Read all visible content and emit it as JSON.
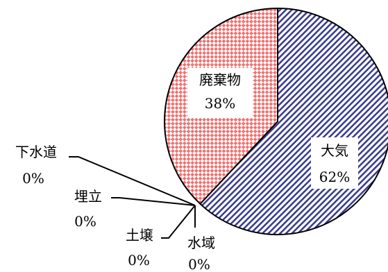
{
  "chart_data": {
    "type": "pie",
    "slices": [
      {
        "name": "大気",
        "value": 62,
        "value_label": "62%",
        "color": "#3b3d8f",
        "pattern": "diagonal-stripes"
      },
      {
        "name": "廃棄物",
        "value": 38,
        "value_label": "38%",
        "color": "#f07070",
        "pattern": "checkered-diamonds"
      },
      {
        "name": "下水道",
        "value": 0,
        "value_label": "0%"
      },
      {
        "name": "埋立",
        "value": 0,
        "value_label": "0%"
      },
      {
        "name": "土壌",
        "value": 0,
        "value_label": "0%"
      },
      {
        "name": "水域",
        "value": 0,
        "value_label": "0%"
      }
    ],
    "start_angle": "12 o'clock",
    "direction": "clockwise",
    "legend": "none",
    "title": ""
  }
}
